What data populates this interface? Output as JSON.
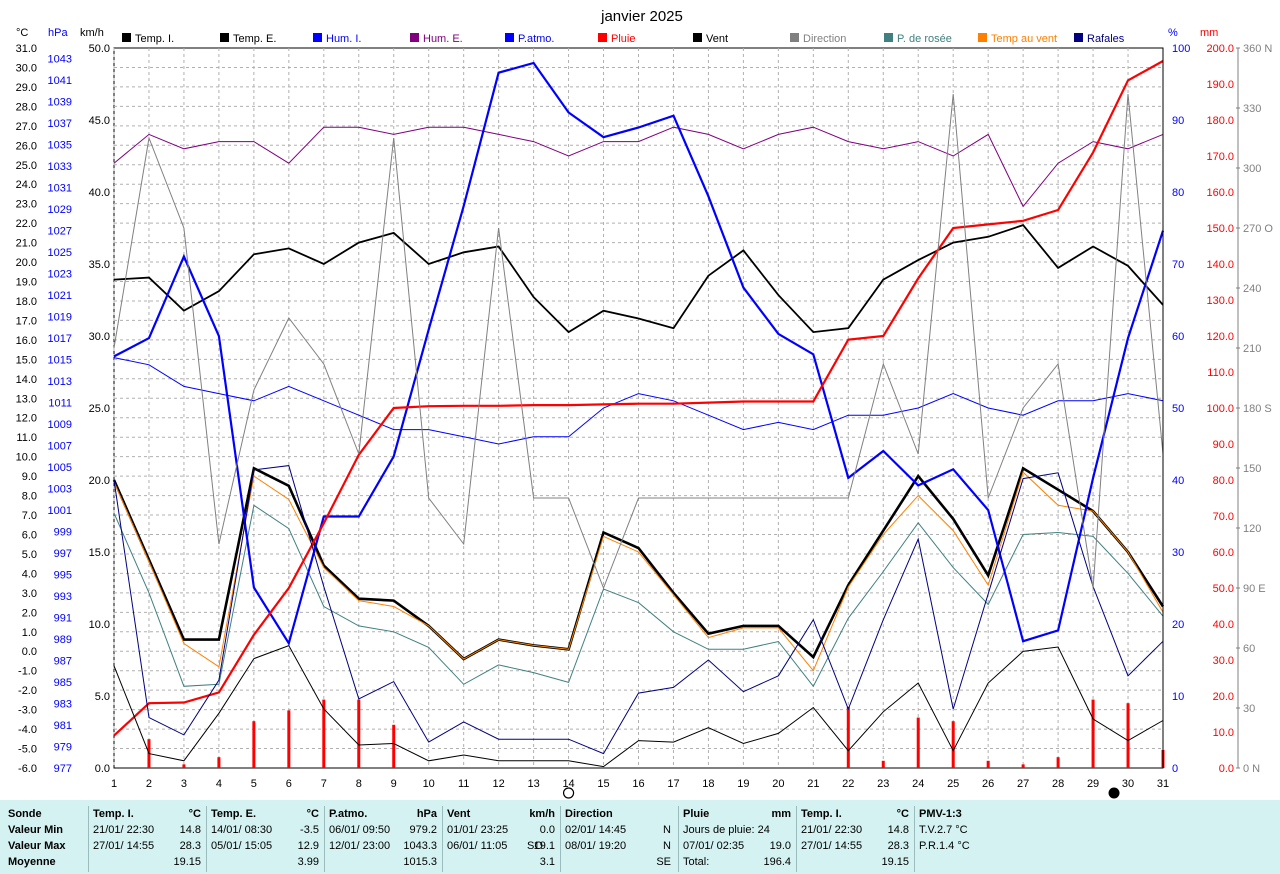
{
  "chart_data": {
    "type": "line",
    "title": "janvier 2025",
    "x": [
      1,
      2,
      3,
      4,
      5,
      6,
      7,
      8,
      9,
      10,
      11,
      12,
      13,
      14,
      15,
      16,
      17,
      18,
      19,
      20,
      21,
      22,
      23,
      24,
      25,
      26,
      27,
      28,
      29,
      30,
      31
    ],
    "axes": {
      "temp_unit": "°C",
      "temp_range": [
        -6,
        31
      ],
      "temp_ticks": [
        "31.0",
        "30.0",
        "29.0",
        "28.0",
        "27.0",
        "26.0",
        "25.0",
        "24.0",
        "23.0",
        "22.0",
        "21.0",
        "20.0",
        "19.0",
        "18.0",
        "17.0",
        "16.0",
        "15.0",
        "14.0",
        "13.0",
        "12.0",
        "11.0",
        "10.0",
        "9.0",
        "8.0",
        "7.0",
        "6.0",
        "5.0",
        "4.0",
        "3.0",
        "2.0",
        "1.0",
        "0.0",
        "-1.0",
        "-2.0",
        "-3.0",
        "-4.0",
        "-5.0",
        "-6.0"
      ],
      "pressure_unit": "hPa",
      "pressure_range": [
        977,
        1044
      ],
      "pressure_ticks": [
        "1043",
        "1041",
        "1039",
        "1037",
        "1035",
        "1033",
        "1031",
        "1029",
        "1027",
        "1025",
        "1023",
        "1021",
        "1019",
        "1017",
        "1015",
        "1013",
        "1011",
        "1009",
        "1007",
        "1005",
        "1003",
        "1001",
        "999",
        "997",
        "995",
        "993",
        "991",
        "989",
        "987",
        "985",
        "983",
        "981",
        "979",
        "977"
      ],
      "wind_unit": "km/h",
      "wind_range": [
        0,
        50
      ],
      "wind_ticks": [
        "50.0",
        "45.0",
        "40.0",
        "35.0",
        "30.0",
        "25.0",
        "20.0",
        "15.0",
        "10.0",
        "5.0",
        "0.0"
      ],
      "humidity_unit": "%",
      "humidity_range": [
        0,
        100
      ],
      "humidity_ticks": [
        "100",
        "90",
        "80",
        "70",
        "60",
        "50",
        "40",
        "30",
        "20",
        "10",
        "0"
      ],
      "rain_unit": "mm",
      "rain_range": [
        0,
        200
      ],
      "rain_ticks": [
        "200.0",
        "190.0",
        "180.0",
        "170.0",
        "160.0",
        "150.0",
        "140.0",
        "130.0",
        "120.0",
        "110.0",
        "100.0",
        "90.0",
        "80.0",
        "70.0",
        "60.0",
        "50.0",
        "40.0",
        "30.0",
        "20.0",
        "10.0",
        "0.0"
      ],
      "direction_range": [
        0,
        360
      ],
      "direction_ticks": [
        "360 N",
        "330",
        "300",
        "270 O",
        "240",
        "210",
        "180 S",
        "150",
        "120",
        "90 E",
        "60",
        "30",
        "0 N"
      ],
      "x_ticks": [
        "1",
        "2",
        "3",
        "4",
        "5",
        "6",
        "7",
        "8",
        "9",
        "10",
        "11",
        "12",
        "13",
        "14",
        "15",
        "16",
        "17",
        "18",
        "19",
        "20",
        "21",
        "22",
        "23",
        "24",
        "25",
        "26",
        "27",
        "28",
        "29",
        "30",
        "31"
      ]
    },
    "legend": [
      {
        "name": "Temp. I.",
        "color": "#000000"
      },
      {
        "name": "Temp. E.",
        "color": "#000000"
      },
      {
        "name": "Hum. I.",
        "color": "#0000ff"
      },
      {
        "name": "Hum. E.",
        "color": "#800080"
      },
      {
        "name": "P.atmo.",
        "color": "#0000ff"
      },
      {
        "name": "Pluie",
        "color": "#ff0000"
      },
      {
        "name": "Vent",
        "color": "#000000"
      },
      {
        "name": "Direction",
        "color": "#808080"
      },
      {
        "name": "P. de rosée",
        "color": "#408080"
      },
      {
        "name": "Temp au vent",
        "color": "#ff8000"
      },
      {
        "name": "Rafales",
        "color": "#000080"
      }
    ],
    "series": [
      {
        "key": "temp_i",
        "name": "Temp. I.",
        "axis": "temp",
        "color": "#000000",
        "width": 1.8,
        "values": [
          19.1,
          19.2,
          17.5,
          18.5,
          20.4,
          20.7,
          19.9,
          21.0,
          21.5,
          19.9,
          20.5,
          20.8,
          18.2,
          16.4,
          17.5,
          17.1,
          16.6,
          19.3,
          20.6,
          18.3,
          16.4,
          16.6,
          19.1,
          20.1,
          21.0,
          21.3,
          21.9,
          19.7,
          20.8,
          19.8,
          17.8
        ]
      },
      {
        "key": "temp_e",
        "name": "Temp. E.",
        "axis": "temp",
        "color": "#000000",
        "width": 2.6,
        "values": [
          8.8,
          4.7,
          0.6,
          0.6,
          9.4,
          8.5,
          4.4,
          2.7,
          2.6,
          1.3,
          -0.4,
          0.6,
          0.3,
          0.1,
          6.1,
          5.3,
          3.0,
          0.9,
          1.3,
          1.3,
          -0.3,
          3.4,
          6.2,
          9.0,
          6.8,
          3.9,
          9.4,
          8.3,
          7.2,
          5.1,
          2.3
        ]
      },
      {
        "key": "temp_vent",
        "name": "Temp au vent",
        "axis": "temp",
        "color": "#ff8000",
        "width": 1,
        "values": [
          8.7,
          4.6,
          0.4,
          -0.8,
          9.0,
          7.8,
          4.3,
          2.6,
          2.3,
          1.3,
          -0.4,
          0.6,
          0.3,
          0.1,
          5.9,
          5.1,
          2.9,
          0.7,
          1.2,
          1.2,
          -1.0,
          3.3,
          6.0,
          8.0,
          6.2,
          3.4,
          9.2,
          7.5,
          7.2,
          5.1,
          2.0
        ]
      },
      {
        "key": "rosee",
        "name": "P. de rosée",
        "axis": "temp",
        "color": "#408080",
        "width": 1,
        "values": [
          7.1,
          3.0,
          -1.8,
          -1.7,
          7.5,
          6.3,
          2.3,
          1.3,
          1.0,
          0.2,
          -1.7,
          -0.7,
          -1.1,
          -1.6,
          3.2,
          2.5,
          1.0,
          0.1,
          0.1,
          0.5,
          -1.8,
          1.7,
          4.1,
          6.6,
          4.3,
          2.4,
          6.0,
          6.1,
          5.9,
          4.0,
          1.8
        ]
      },
      {
        "key": "hum_e",
        "name": "Hum. E.",
        "axis": "humidity",
        "color": "#800080",
        "width": 1,
        "values": [
          84,
          88,
          86,
          87,
          87,
          84,
          89,
          89,
          88,
          89,
          89,
          88,
          87,
          85,
          87,
          87,
          89,
          88,
          86,
          88,
          89,
          87,
          86,
          87,
          85,
          88,
          78,
          84,
          87,
          86,
          88
        ]
      },
      {
        "key": "hum_i",
        "name": "Hum. I.",
        "axis": "humidity",
        "color": "#0000ff",
        "width": 1,
        "values": [
          57,
          56,
          53,
          52,
          51,
          53,
          51,
          49,
          47,
          47,
          46,
          45,
          46,
          46,
          50,
          52,
          51,
          49,
          47,
          48,
          47,
          49,
          49,
          50,
          52,
          50,
          49,
          51,
          51,
          52,
          51
        ]
      },
      {
        "key": "patmo",
        "name": "P.atmo.",
        "axis": "pressure",
        "color": "#0000ff",
        "width": 2.2,
        "values": [
          1015.3,
          1017.0,
          1024.6,
          1017.2,
          993.8,
          988.6,
          1000.4,
          1000.4,
          1006.0,
          1017.8,
          1029.3,
          1041.7,
          1042.6,
          1038.0,
          1035.7,
          1036.6,
          1037.7,
          1030.2,
          1021.7,
          1017.4,
          1015.5,
          1004.0,
          1006.5,
          1003.3,
          1004.8,
          1001.0,
          988.8,
          989.8,
          1004.0,
          1017.0,
          1027.0
        ]
      },
      {
        "key": "pluie_cumul",
        "name": "Pluie",
        "axis": "rain",
        "color": "#ff0000",
        "width": 2.2,
        "values": [
          9.0,
          18.0,
          18.2,
          21.0,
          37.0,
          50.0,
          68.0,
          87.0,
          100.0,
          100.5,
          100.6,
          100.6,
          100.8,
          100.8,
          101.0,
          101.2,
          101.2,
          101.5,
          101.8,
          101.8,
          101.8,
          119.0,
          120.0,
          136.0,
          150.0,
          151.0,
          152.0,
          155.0,
          171.0,
          191.0,
          196.4
        ]
      },
      {
        "key": "vent",
        "name": "Vent",
        "axis": "wind",
        "color": "#000000",
        "width": 1,
        "values": [
          7.1,
          1.0,
          0.5,
          3.8,
          7.6,
          8.5,
          4.1,
          1.6,
          1.7,
          0.5,
          0.9,
          0.5,
          0.5,
          0.5,
          0.1,
          1.9,
          1.8,
          2.8,
          1.7,
          2.4,
          4.2,
          1.2,
          3.9,
          5.9,
          1.2,
          5.9,
          8.1,
          8.4,
          3.4,
          1.9,
          3.3
        ]
      },
      {
        "key": "rafales",
        "name": "Rafales",
        "axis": "wind",
        "color": "#000080",
        "width": 1,
        "values": [
          20.0,
          3.5,
          2.3,
          6.1,
          20.7,
          21.0,
          12.6,
          4.8,
          6.0,
          1.8,
          3.2,
          2.0,
          2.0,
          2.0,
          1.0,
          5.2,
          5.6,
          7.5,
          5.3,
          6.4,
          10.3,
          4.1,
          10.3,
          15.9,
          4.1,
          12.1,
          20.1,
          20.5,
          12.6,
          6.4,
          8.8
        ]
      },
      {
        "key": "direction",
        "name": "Direction",
        "axis": "direction",
        "color": "#808080",
        "width": 1,
        "values": [
          210,
          315,
          270,
          112,
          189,
          225,
          202,
          157,
          315,
          135,
          112,
          270,
          135,
          135,
          90,
          135,
          135,
          135,
          135,
          135,
          135,
          135,
          202,
          157,
          337,
          135,
          180,
          202,
          90,
          337,
          157
        ]
      }
    ],
    "bars": {
      "key": "pluie_jour",
      "name": "Pluie",
      "axis": "rain",
      "color": "#ff0000",
      "values": [
        0,
        8,
        1,
        3,
        13,
        16,
        19,
        19,
        12,
        0,
        0,
        0,
        0,
        0,
        0,
        0,
        0,
        0,
        0,
        0,
        0,
        17,
        2,
        14,
        13,
        2,
        1,
        3,
        19,
        18,
        5
      ]
    },
    "markers": [
      {
        "x": 14,
        "symbol": "new-moon"
      },
      {
        "x": 30,
        "symbol": "full-moon"
      }
    ],
    "grid": true
  },
  "stats": {
    "row_labels": [
      "Sonde",
      "Valeur Min",
      "Valeur Max",
      "Moyenne"
    ],
    "temp_i": {
      "title": "Temp. I.",
      "unit": "°C",
      "min_time": "21/01/ 22:30",
      "min": "14.8",
      "max_time": "27/01/ 14:55",
      "max": "28.3",
      "avg": "19.15"
    },
    "temp_e": {
      "title": "Temp. E.",
      "unit": "°C",
      "min_time": "14/01/ 08:30",
      "min": "-3.5",
      "max_time": "05/01/ 15:05",
      "max": "12.9",
      "avg": "3.99"
    },
    "patmo": {
      "title": "P.atmo.",
      "unit": "hPa",
      "min_time": "06/01/ 09:50",
      "min": "979.2",
      "max_time": "12/01/ 23:00",
      "max": "1043.3",
      "avg": "1015.3"
    },
    "vent": {
      "title": "Vent",
      "unit": "km/h",
      "min_time": "01/01/ 23:25",
      "min": "0.0",
      "max_time": "06/01/ 11:05",
      "max_dir": "SO",
      "max": "19.1",
      "avg": "3.1"
    },
    "direction": {
      "title": "Direction",
      "min_time": "02/01/ 14:45",
      "min": "N",
      "max_time": "08/01/ 19:20",
      "max": "N",
      "avg": "SE"
    },
    "pluie": {
      "title": "Pluie",
      "unit": "mm",
      "days_label": "Jours de pluie: 24",
      "max_time": "07/01/ 02:35",
      "max": "19.0",
      "total_label": "Total:",
      "total": "196.4"
    },
    "temp_i2": {
      "title": "Temp. I.",
      "unit": "°C",
      "min_time": "21/01/ 22:30",
      "min": "14.8",
      "max_time": "27/01/ 14:55",
      "max": "28.3",
      "avg": "19.15"
    },
    "pmv": {
      "title": "PMV-1:3",
      "tv": "T.V.2.7 °C",
      "pr": "P.R.1.4 °C"
    }
  }
}
